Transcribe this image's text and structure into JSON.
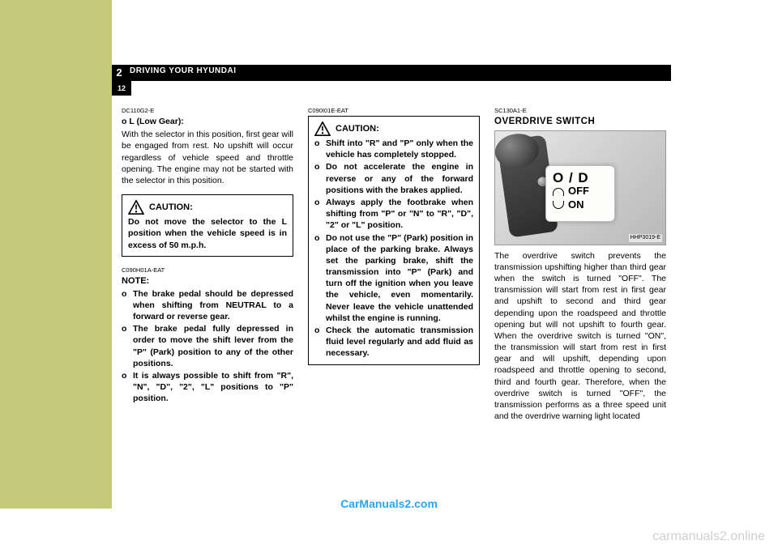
{
  "header": {
    "section_number": "2",
    "section_title": "DRIVING YOUR HYUNDAI",
    "page_number": "12"
  },
  "col1": {
    "code1": "DC110G2-E",
    "h1": "o  L (Low Gear):",
    "p1": "With the selector in this position, first gear will be engaged from rest. No upshift will occur regardless of vehicle speed and throttle opening. The engine may not be started with the selector in this position.",
    "caution_label": "CAUTION:",
    "caution_text": "Do not move the selector to the L position when the vehicle speed is in excess of 50 m.p.h.",
    "code2": "C090H01A-EAT",
    "note_label": "NOTE:",
    "note_items": [
      "The brake pedal should be depressed when shifting from NEUTRAL to a forward or reverse gear.",
      "The brake pedal fully depressed in order to move the shift lever from the \"P\" (Park) position to any of the other positions.",
      "It is always possible to shift from \"R\", \"N\", \"D\", \"2\", \"L\" positions to \"P\" position."
    ]
  },
  "col2": {
    "code": "C090I01E-EAT",
    "caution_label": "CAUTION:",
    "items": [
      "Shift into \"R\" and \"P\" only when the vehicle has completely stopped.",
      "Do not accelerate the engine in reverse or any of the forward positions with the brakes applied.",
      "Always apply the footbrake when shifting from \"P\" or \"N\" to \"R\", \"D\", \"2\" or \"L\" position.",
      "Do not use the \"P\" (Park) position in place of the parking brake. Always set the parking brake, shift the transmission into \"P\" (Park) and  turn off the ignition when you leave the vehicle, even momentarily. Never leave the vehicle unattended whilst the engine is running.",
      "Check the automatic transmission fluid level regularly and add fluid as necessary."
    ]
  },
  "col3": {
    "code": "SC130A1-E",
    "title": "OVERDRIVE SWITCH",
    "fig_label": "HHP3019-E",
    "od_big": "O / D",
    "od_off": "OFF",
    "od_on": "ON",
    "para": "The overdrive switch prevents the transmission upshifting higher than third gear when the switch is turned \"OFF\". The transmission will start from rest in first gear and upshift to second and third gear depending upon the roadspeed and throttle opening but will not upshift to fourth gear. When the overdrive switch is turned \"ON\", the transmission will start from rest in first gear and will upshift, depending upon roadspeed and throttle opening to second, third and fourth gear. Therefore, when the overdrive switch is turned \"OFF\", the transmission performs as a three speed unit and the overdrive warning light located"
  },
  "watermarks": {
    "w1": "CarManuals2.com",
    "w2": "carmanuals2.online"
  },
  "colors": {
    "sidebar": "#c4c97b",
    "band": "#000000",
    "link": "#2aa6f0",
    "faint": "#d0d0d0"
  }
}
